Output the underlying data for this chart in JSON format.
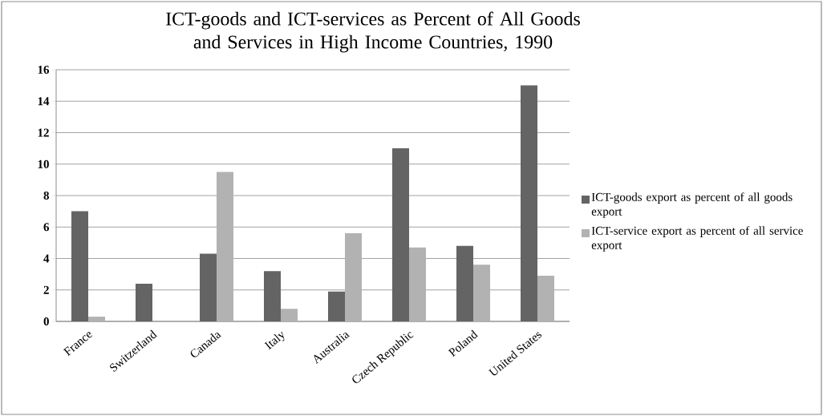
{
  "chart_data": {
    "type": "bar",
    "title": "ICT-goods and ICT-services as Percent of All Goods and Services in High Income Countries, 1990",
    "categories": [
      "France",
      "Switzerland",
      "Canada",
      "Italy",
      "Australia",
      "Czech Republic",
      "Poland",
      "United States"
    ],
    "series": [
      {
        "name": "ICT-goods export as percent of all goods export",
        "color": "#646464",
        "values": [
          7.0,
          2.4,
          4.3,
          3.2,
          1.9,
          11.0,
          4.8,
          15.0
        ]
      },
      {
        "name": "ICT-service export as percent of all service export",
        "color": "#b2b2b2",
        "values": [
          0.3,
          0,
          9.5,
          0.8,
          5.6,
          4.7,
          3.6,
          2.9
        ]
      }
    ],
    "ylim": [
      0,
      16
    ],
    "yticks": [
      0,
      2,
      4,
      6,
      8,
      10,
      12,
      14,
      16
    ],
    "grid": "y",
    "legend": "right"
  }
}
